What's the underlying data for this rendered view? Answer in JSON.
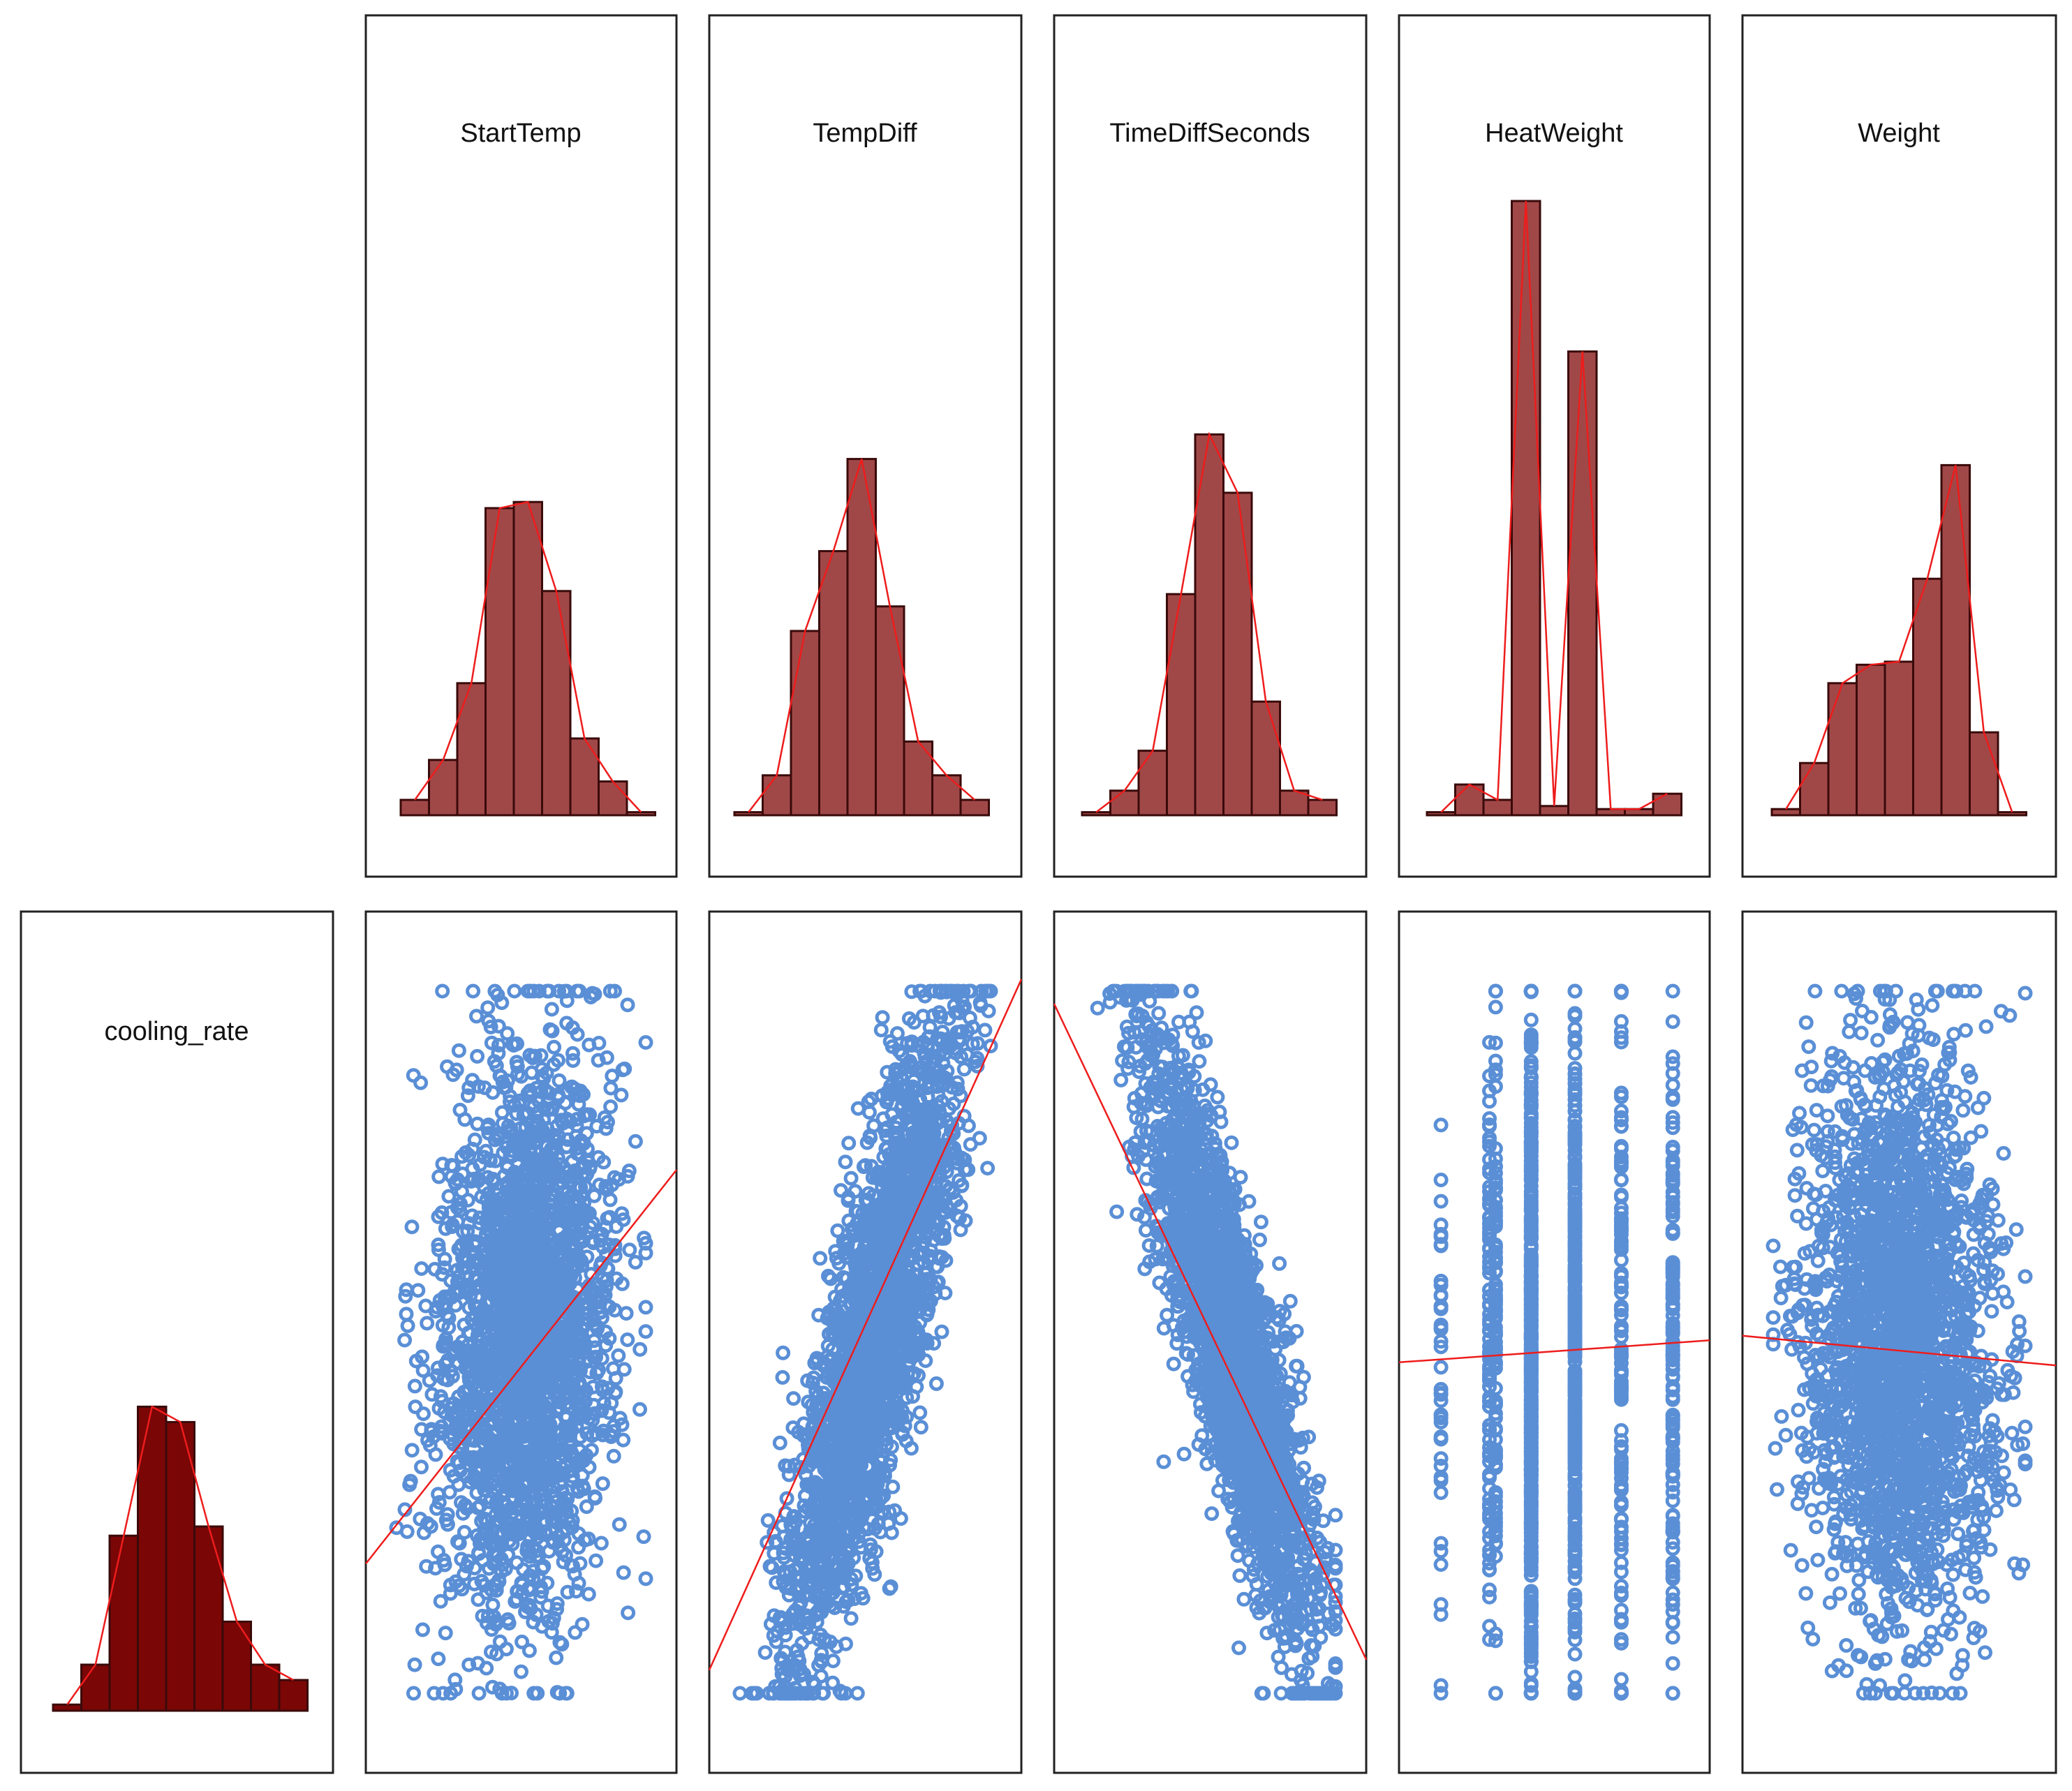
{
  "colors": {
    "panel_border": "#222222",
    "hist_bar_light": "#a04848",
    "hist_bar_dark": "#7a0606",
    "density_line": "#ee1c1c",
    "scatter_point": "#5a8fd6",
    "fit_line": "#ee1c1c"
  },
  "chart_data": [
    {
      "type": "bar",
      "variable": "StartTemp",
      "title": "StartTemp",
      "values": [
        0.05,
        0.18,
        0.43,
        1.0,
        1.02,
        0.73,
        0.25,
        0.11,
        0.01
      ],
      "ylim": [
        0,
        2.0
      ]
    },
    {
      "type": "bar",
      "variable": "TempDiff",
      "title": "TempDiff",
      "values": [
        0.01,
        0.13,
        0.6,
        0.86,
        1.16,
        0.68,
        0.24,
        0.13,
        0.05
      ],
      "ylim": [
        0,
        2.0
      ]
    },
    {
      "type": "bar",
      "variable": "TimeDiffSeconds",
      "title": "TimeDiffSeconds",
      "values": [
        0.01,
        0.08,
        0.21,
        0.72,
        1.24,
        1.05,
        0.37,
        0.08,
        0.05
      ],
      "ylim": [
        0,
        2.0
      ]
    },
    {
      "type": "bar",
      "variable": "HeatWeight",
      "title": "HeatWeight",
      "values": [
        0.01,
        0.1,
        0.05,
        2.0,
        0.03,
        1.51,
        0.02,
        0.02,
        0.07
      ],
      "ylim": [
        0,
        2.0
      ]
    },
    {
      "type": "bar",
      "variable": "Weight",
      "title": "Weight",
      "values": [
        0.02,
        0.17,
        0.43,
        0.49,
        0.5,
        0.77,
        1.14,
        0.27,
        0.01
      ],
      "ylim": [
        0,
        2.0
      ]
    },
    {
      "type": "bar",
      "variable": "cooling_rate",
      "title": "cooling_rate",
      "values": [
        0.02,
        0.15,
        0.57,
        0.99,
        0.94,
        0.6,
        0.29,
        0.15,
        0.1
      ],
      "ylim": [
        0,
        2.0
      ]
    },
    {
      "type": "scatter",
      "x_variable": "StartTemp",
      "y_variable": "cooling_rate",
      "pattern": "cloud",
      "n_points": 2400,
      "fit_line": {
        "y_at_x0": 0.24,
        "y_at_x1": 0.69
      },
      "xlim": [
        0,
        1
      ],
      "ylim": [
        0,
        1
      ]
    },
    {
      "type": "scatter",
      "x_variable": "TempDiff",
      "y_variable": "cooling_rate",
      "pattern": "positive",
      "n_points": 2400,
      "fit_line": {
        "y_at_x0": 0.13,
        "y_at_x1": 0.92
      },
      "xlim": [
        0,
        1
      ],
      "ylim": [
        0,
        1
      ]
    },
    {
      "type": "scatter",
      "x_variable": "TimeDiffSeconds",
      "y_variable": "cooling_rate",
      "pattern": "negative",
      "n_points": 2400,
      "fit_line": {
        "y_at_x0": 0.89,
        "y_at_x1": 0.14
      },
      "xlim": [
        0,
        1
      ],
      "ylim": [
        0,
        1
      ]
    },
    {
      "type": "scatter",
      "x_variable": "HeatWeight",
      "y_variable": "cooling_rate",
      "pattern": "columns",
      "n_points": 1400,
      "fit_line": {
        "y_at_x0": 0.474,
        "y_at_x1": 0.5
      },
      "xlim": [
        0,
        1
      ],
      "ylim": [
        0,
        1
      ]
    },
    {
      "type": "scatter",
      "x_variable": "Weight",
      "y_variable": "cooling_rate",
      "pattern": "cloud-flat",
      "n_points": 2400,
      "fit_line": {
        "y_at_x0": 0.505,
        "y_at_x1": 0.471
      },
      "xlim": [
        0,
        1
      ],
      "ylim": [
        0,
        1
      ]
    }
  ]
}
